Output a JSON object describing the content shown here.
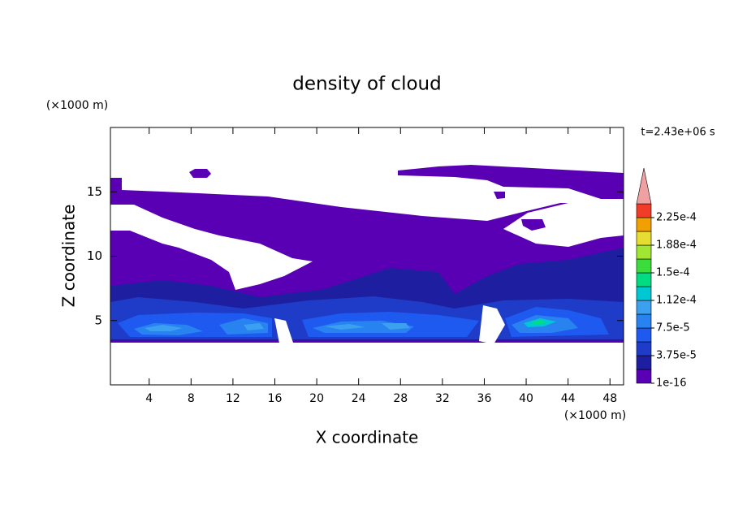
{
  "chart_data": {
    "type": "contour",
    "title": "density of cloud",
    "xlabel": "X coordinate",
    "ylabel": "Z coordinate",
    "xunit": "(×1000 m)",
    "yunit": "(×1000 m)",
    "annotation": "t=2.43e+06 s",
    "xlim": [
      0.3,
      49.3
    ],
    "ylim": [
      0,
      20
    ],
    "xticks": [
      4,
      8,
      12,
      16,
      20,
      24,
      28,
      32,
      36,
      40,
      44,
      48
    ],
    "yticks": [
      5,
      10,
      15
    ],
    "colorbar": {
      "levels": [
        {
          "value": 1e-16,
          "label": "1e-16"
        },
        {
          "value": 3.75e-05,
          "label": "3.75e-5"
        },
        {
          "value": 7.5e-05,
          "label": "7.5e-5"
        },
        {
          "value": 0.000112,
          "label": "1.12e-4"
        },
        {
          "value": 0.00015,
          "label": "1.5e-4"
        },
        {
          "value": 0.000188,
          "label": "1.88e-4"
        },
        {
          "value": 0.000225,
          "label": "2.25e-4"
        }
      ],
      "colors": [
        "#5a00b4",
        "#1e1ea0",
        "#1e3cc8",
        "#1e5af0",
        "#2882f0",
        "#3ca0f0",
        "#00c8d2",
        "#00dc82",
        "#3cdc3c",
        "#a0e632",
        "#e6dc32",
        "#f0a000",
        "#f03c28"
      ],
      "over_color": "#f0a0a0"
    }
  }
}
